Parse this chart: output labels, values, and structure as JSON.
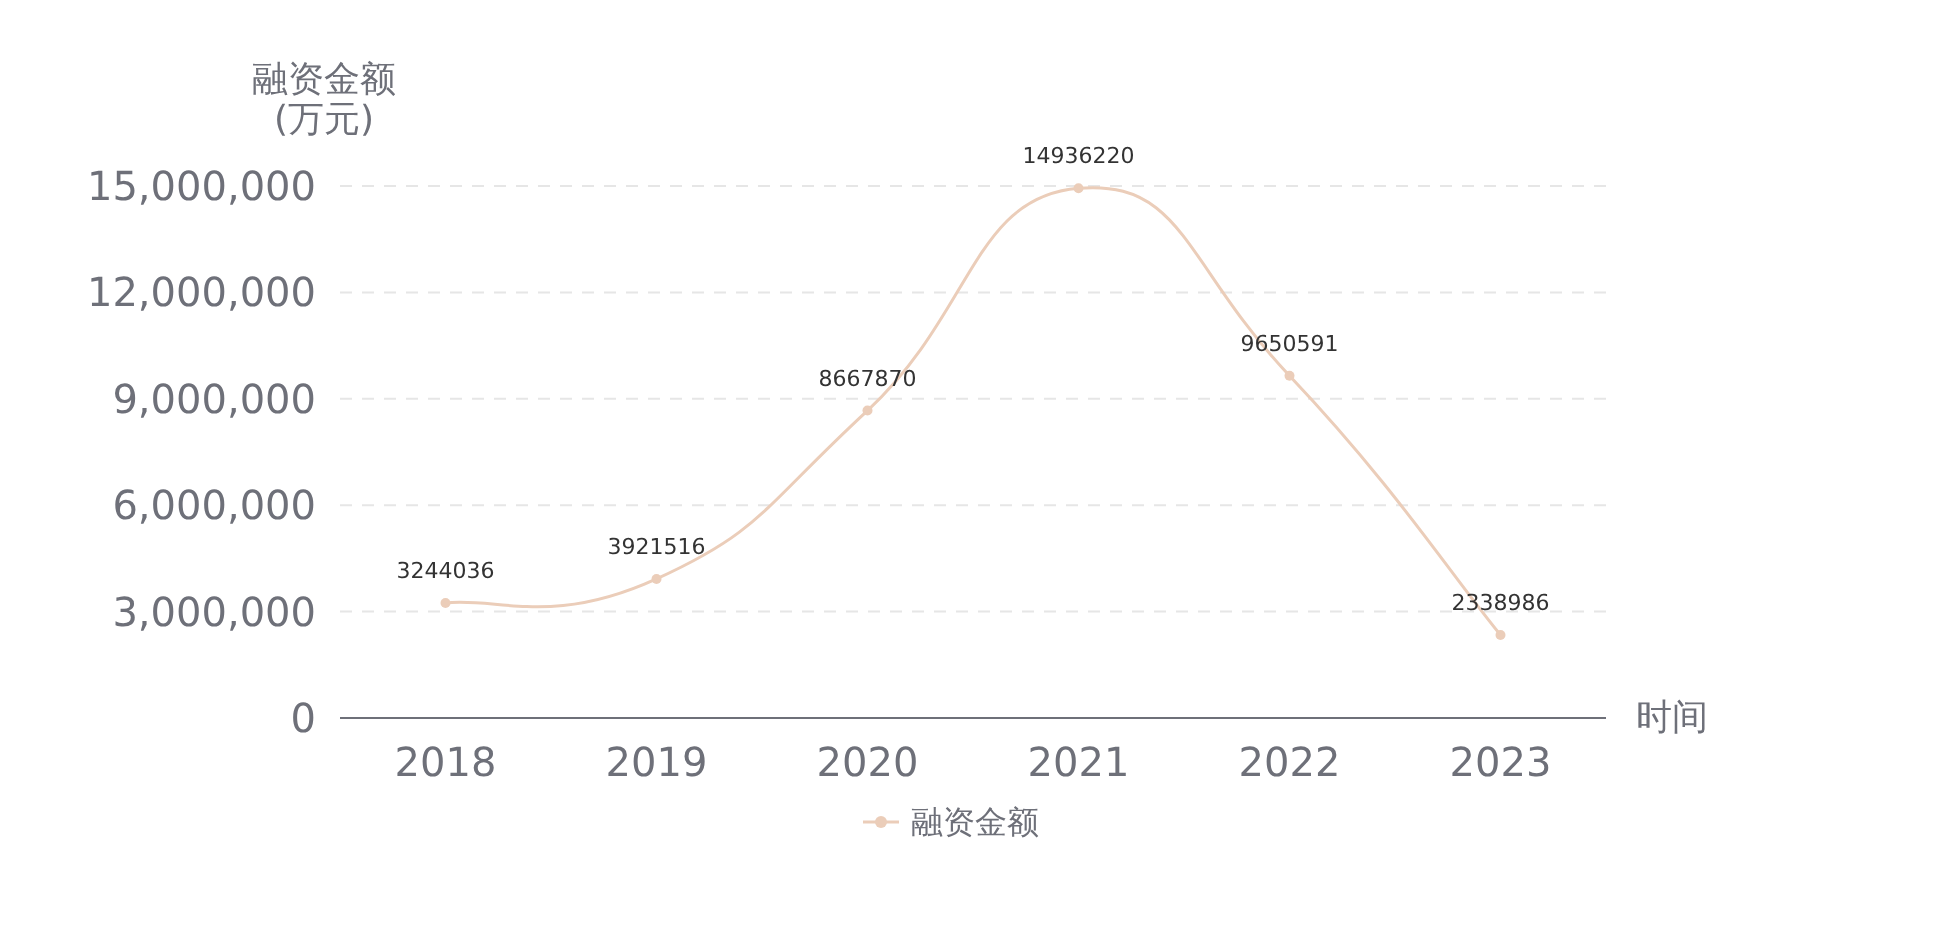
{
  "chart_data": {
    "type": "line",
    "ylabel": "融资金额\n(万元)",
    "xlabel": "时间",
    "categories": [
      "2018",
      "2019",
      "2020",
      "2021",
      "2022",
      "2023"
    ],
    "series": [
      {
        "name": "融资金额",
        "color": "#ebcdb9",
        "values": [
          3244036,
          3921516,
          8667870,
          14936220,
          9650591,
          2338986
        ]
      }
    ],
    "ylim": [
      0,
      15000000
    ],
    "yticks": [
      {
        "value": 0,
        "label": "0"
      },
      {
        "value": 3000000,
        "label": "3,000,000"
      },
      {
        "value": 6000000,
        "label": "6,000,000"
      },
      {
        "value": 9000000,
        "label": "9,000,000"
      },
      {
        "value": 12000000,
        "label": "12,000,000"
      },
      {
        "value": 15000000,
        "label": "15,000,000"
      }
    ],
    "grid": "y",
    "legend": "bottom",
    "marker": "circle",
    "data_labels": true
  }
}
